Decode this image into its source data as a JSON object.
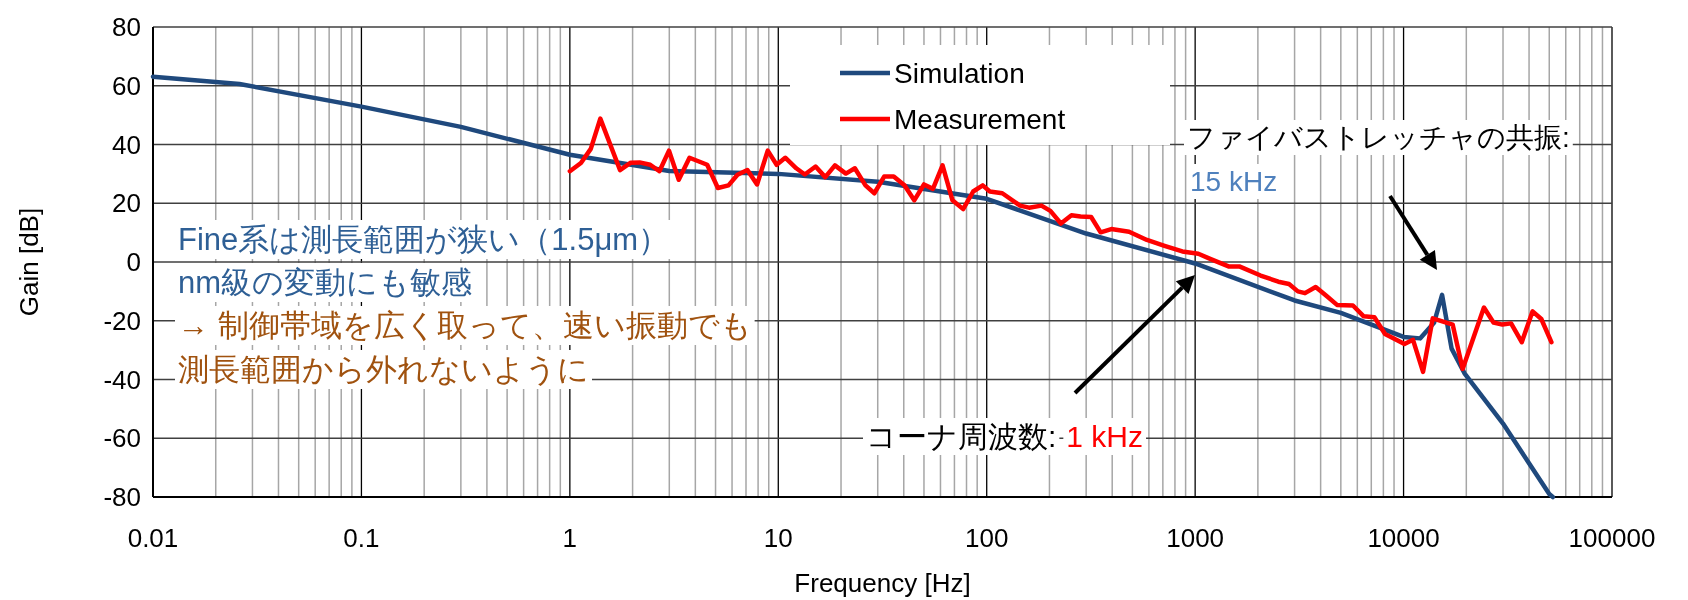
{
  "chart_data": {
    "type": "line",
    "xlabel": "Frequency [Hz]",
    "ylabel": "Gain [dB]",
    "log": "x",
    "grid": true,
    "legend": "top",
    "xlim": [
      0.01,
      100000
    ],
    "ylim": [
      -80,
      80
    ],
    "xticks": [
      0.01,
      0.1,
      1,
      10,
      100,
      1000,
      10000,
      100000
    ],
    "yticks": [
      -80,
      -60,
      -40,
      -20,
      0,
      20,
      40,
      60,
      80
    ],
    "series": [
      {
        "name": "Simulation",
        "color": "#1f497d",
        "x": [
          0.01,
          0.026,
          0.1,
          0.3,
          1,
          3,
          10,
          30,
          100,
          300,
          1000,
          3000,
          5000,
          10000,
          12000,
          14000,
          15300,
          17000,
          19600,
          30000,
          50000,
          52000
        ],
        "values": [
          63.1,
          60.6,
          52.9,
          46,
          36.5,
          31,
          30,
          27.3,
          21.5,
          9.7,
          -0.5,
          -13.1,
          -17.3,
          -25.5,
          -26,
          -20.7,
          -11.2,
          -29.5,
          -37.9,
          -55,
          -79,
          -80
        ]
      },
      {
        "name": "Measurement",
        "color": "#ff0000",
        "x": [
          1.0,
          1.13,
          1.26,
          1.4,
          1.74,
          1.96,
          2.16,
          2.43,
          2.69,
          2.99,
          3.33,
          3.75,
          4.56,
          5.13,
          5.77,
          6.37,
          7.11,
          7.91,
          8.9,
          9.82,
          10.8,
          12.2,
          13.4,
          15.1,
          16.8,
          18.7,
          21.1,
          23.3,
          26.2,
          28.9,
          32.2,
          35.8,
          40.3,
          44.9,
          50.0,
          55.2,
          61.4,
          68.5,
          77.1,
          86.1,
          95.7,
          103.5,
          118.8,
          144.6,
          159.6,
          183,
          202,
          227,
          255,
          282,
          317,
          352,
          396,
          482,
          587,
          713,
          868,
          1036,
          1188,
          1446,
          1629,
          2061,
          2507,
          2821,
          3111,
          3365,
          3787,
          4260,
          4794,
          5717,
          6436,
          7244,
          8149,
          10100,
          11100,
          12400,
          13800,
          17200,
          19200,
          21700,
          24300,
          27000,
          29800,
          32800,
          36900,
          41600,
          45800,
          51200
        ],
        "values": [
          30.9,
          33.7,
          38.5,
          48.8,
          31.3,
          33.8,
          33.9,
          33.1,
          30.9,
          37.9,
          28.0,
          35.5,
          33.1,
          25.2,
          26.1,
          29.7,
          31.3,
          26.4,
          37.9,
          33.1,
          35.5,
          31.9,
          29.8,
          32.5,
          28.9,
          32.9,
          30.1,
          31.9,
          26.1,
          23.4,
          29.1,
          29.1,
          26.1,
          21.0,
          26.4,
          24.9,
          32.9,
          21.0,
          18.0,
          24.0,
          26.1,
          24.0,
          23.4,
          19.2,
          18.5,
          19.2,
          17.4,
          13.1,
          15.9,
          15.5,
          15.3,
          10.1,
          11.2,
          10.3,
          7.5,
          5.5,
          3.6,
          2.8,
          1.0,
          -1.5,
          -1.5,
          -4.6,
          -6.7,
          -7.5,
          -10.0,
          -10.6,
          -8.5,
          -11.5,
          -14.6,
          -14.8,
          -18.5,
          -18.8,
          -24.5,
          -27.9,
          -26.5,
          -37.4,
          -19.2,
          -21.3,
          -36.4,
          -25.5,
          -15.5,
          -20.6,
          -21.3,
          -20.9,
          -27.3,
          -16.8,
          -19.4,
          -27.3
        ]
      }
    ],
    "annotations": [
      "Fine系は測長範囲が狭い（1.5μm）",
      "nm級の変動にも敏感",
      "→ 制御帯域を広く取って、速い振動でも",
      "測長範囲から外れないように",
      "コーナ周波数:",
      "1 kHz",
      "ファイバストレッチャの共振:",
      "15 kHz"
    ]
  }
}
